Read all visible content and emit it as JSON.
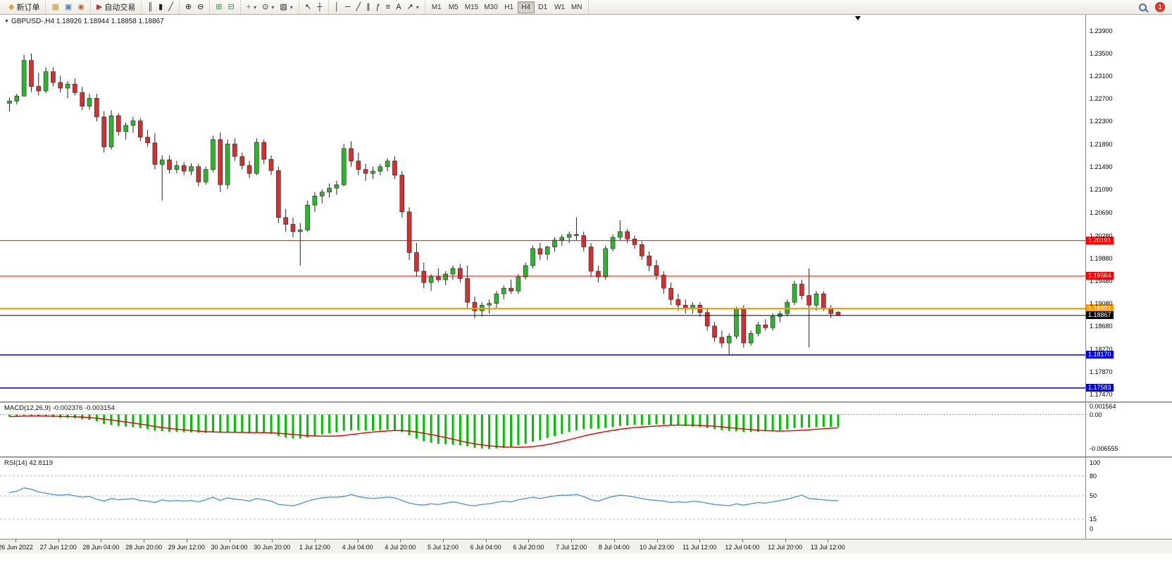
{
  "toolbar": {
    "notification_count": "1",
    "active_timeframe": "H4",
    "timeframes": [
      "M1",
      "M5",
      "M15",
      "M30",
      "H1",
      "H4",
      "D1",
      "W1",
      "MN"
    ],
    "groups": [
      {
        "name": "trade",
        "items": [
          {
            "name": "new-order-button",
            "label": "新订单",
            "glyph": "◆",
            "gc": "#d9a43b"
          }
        ]
      },
      {
        "name": "windows",
        "items": [
          {
            "name": "charts-grid-icon",
            "glyph": "▦",
            "gc": "#c49a3c"
          },
          {
            "name": "profiles-icon",
            "glyph": "▣",
            "gc": "#5b7fbf"
          },
          {
            "name": "market-watch-icon",
            "glyph": "◉",
            "gc": "#c2622f"
          }
        ]
      },
      {
        "name": "autotrade",
        "items": [
          {
            "name": "auto-trading-button",
            "label": "自动交易",
            "glyph": "▶",
            "gc": "#c03a2b"
          }
        ]
      },
      {
        "name": "chart-type",
        "items": [
          {
            "name": "bar-chart-icon",
            "glyph": "║"
          },
          {
            "name": "candlestick-chart-icon",
            "glyph": "▮"
          },
          {
            "name": "line-chart-icon",
            "glyph": "╱"
          }
        ]
      },
      {
        "name": "zoom",
        "items": [
          {
            "name": "zoom-in-icon",
            "glyph": "⊕"
          },
          {
            "name": "zoom-out-icon",
            "glyph": "⊖"
          }
        ]
      },
      {
        "name": "arrange",
        "items": [
          {
            "name": "tile-windows-icon",
            "glyph": "⊞",
            "gc": "#3a8a3a"
          },
          {
            "name": "cascade-windows-icon",
            "glyph": "⊟",
            "gc": "#3a8a3a"
          }
        ]
      },
      {
        "name": "chart-tools",
        "items": [
          {
            "name": "indicators-icon",
            "glyph": "+",
            "gc": "#1e9e1e",
            "dropdown": true
          },
          {
            "name": "periods-icon",
            "glyph": "⊙",
            "dropdown": true
          },
          {
            "name": "templates-icon",
            "glyph": "▨",
            "dropdown": true
          }
        ]
      },
      {
        "name": "cursor-tools",
        "items": [
          {
            "name": "cursor-icon",
            "glyph": "↖"
          },
          {
            "name": "crosshair-icon",
            "glyph": "┼"
          }
        ]
      },
      {
        "name": "draw-tools",
        "items": [
          {
            "name": "vertical-line-icon",
            "glyph": "│"
          },
          {
            "name": "horizontal-line-icon",
            "glyph": "─"
          },
          {
            "name": "trendline-icon",
            "glyph": "╱"
          },
          {
            "name": "channel-icon",
            "glyph": "∥"
          },
          {
            "name": "fibonacci-icon",
            "glyph": "ƒ"
          },
          {
            "name": "shapes-icon",
            "glyph": "≡"
          },
          {
            "name": "text-icon",
            "glyph": "A"
          },
          {
            "name": "arrows-icon",
            "glyph": "↗",
            "dropdown": true
          }
        ]
      },
      {
        "name": "timeframes",
        "items": []
      }
    ]
  },
  "chart": {
    "symbol_info": "GBPUSD-,H4  1.18926 1.18944 1.18858 1.18867",
    "price_axis": [
      "1.23900",
      "1.23500",
      "1.23100",
      "1.22700",
      "1.22300",
      "1.21890",
      "1.21490",
      "1.21090",
      "1.20690",
      "1.20280",
      "1.19880",
      "1.19480",
      "1.19080",
      "1.18680",
      "1.18270",
      "1.17870",
      "1.17470"
    ],
    "time_axis": [
      "26 Jun 2022",
      "27 Jun 12:00",
      "28 Jun 04:00",
      "28 Jun 20:00",
      "29 Jun 12:00",
      "30 Jun 04:00",
      "30 Jun 20:00",
      "1 Jul 12:00",
      "4 Jul 04:00",
      "4 Jul 20:00",
      "5 Jul 12:00",
      "6 Jul 04:00",
      "6 Jul 20:00",
      "7 Jul 12:00",
      "8 Jul 04:00",
      "10 Jul 23:00",
      "11 Jul 12:00",
      "12 Jul 04:00",
      "12 Jul 20:00",
      "13 Jul 12:00"
    ]
  },
  "macd_panel": {
    "label": "MACD(12,26,9) -0.002376 -0.003154",
    "axis": [
      "0.001564",
      "0.00",
      "-0.006555"
    ]
  },
  "rsi_panel": {
    "label": "RSI(14) 42.8119",
    "axis": [
      "100",
      "80",
      "50",
      "15",
      "0"
    ]
  },
  "colors": {
    "bull": "#2eb52e",
    "bear": "#d43030",
    "wick": "#222222",
    "macd_hist": "#00c000",
    "macd_signal": "#dd0000",
    "rsi_line": "#4a90d9"
  },
  "chart_data": {
    "type": "candlestick",
    "symbol": "GBPUSD-",
    "timeframe": "H4",
    "ohlc_current": {
      "open": "1.18926",
      "high": "1.18944",
      "low": "1.18858",
      "close": "1.18867"
    },
    "price_range": {
      "top": 1.239,
      "bottom": 1.1747
    },
    "levels": [
      {
        "price": 1.20191,
        "label": "1.20191",
        "color": "#ff0000",
        "width": 1
      },
      {
        "price": 1.19564,
        "label": "1.19564",
        "color": "#ff0000",
        "width": 1
      },
      {
        "price": 1.18991,
        "label": "1.18991",
        "color": "#ff9c00",
        "width": 2
      },
      {
        "price": 1.18867,
        "label": "1.18867",
        "color": "#000000",
        "width": 1
      },
      {
        "price": 1.1817,
        "label": "1.18170",
        "color": "#0000e6",
        "width": 1.5
      },
      {
        "price": 1.17583,
        "label": "1.17583",
        "color": "#0000e6",
        "width": 1.5
      }
    ],
    "candles": [
      [
        1.2262,
        1.2272,
        1.2248,
        1.2266
      ],
      [
        1.2266,
        1.2279,
        1.226,
        1.2275
      ],
      [
        1.2275,
        1.2348,
        1.2274,
        1.2338
      ],
      [
        1.2338,
        1.235,
        1.2282,
        1.2292
      ],
      [
        1.2292,
        1.2316,
        1.2276,
        1.2284
      ],
      [
        1.2284,
        1.2326,
        1.228,
        1.2318
      ],
      [
        1.2318,
        1.2326,
        1.2292,
        1.2299
      ],
      [
        1.2299,
        1.2311,
        1.2281,
        1.2289
      ],
      [
        1.2289,
        1.2301,
        1.2271,
        1.2296
      ],
      [
        1.2296,
        1.2306,
        1.2276,
        1.2281
      ],
      [
        1.2281,
        1.2291,
        1.225,
        1.2257
      ],
      [
        1.2257,
        1.2279,
        1.2251,
        1.2271
      ],
      [
        1.2271,
        1.2279,
        1.223,
        1.2238
      ],
      [
        1.2238,
        1.2248,
        1.2175,
        1.2185
      ],
      [
        1.2185,
        1.225,
        1.218,
        1.224
      ],
      [
        1.224,
        1.2245,
        1.2205,
        1.2212
      ],
      [
        1.2212,
        1.2228,
        1.2198,
        1.2223
      ],
      [
        1.2223,
        1.2238,
        1.221,
        1.2231
      ],
      [
        1.2231,
        1.2236,
        1.2195,
        1.2202
      ],
      [
        1.2202,
        1.2215,
        1.2185,
        1.2192
      ],
      [
        1.2192,
        1.2209,
        1.2145,
        1.2154
      ],
      [
        1.2154,
        1.217,
        1.209,
        1.2162
      ],
      [
        1.2162,
        1.217,
        1.2138,
        1.2145
      ],
      [
        1.2145,
        1.216,
        1.2138,
        1.2152
      ],
      [
        1.2152,
        1.2158,
        1.2135,
        1.2142
      ],
      [
        1.2142,
        1.2156,
        1.2135,
        1.215
      ],
      [
        1.215,
        1.2155,
        1.2115,
        1.2123
      ],
      [
        1.2123,
        1.215,
        1.2118,
        1.2145
      ],
      [
        1.2145,
        1.2205,
        1.214,
        1.2198
      ],
      [
        1.2198,
        1.221,
        1.2105,
        1.2118
      ],
      [
        1.2118,
        1.2198,
        1.211,
        1.219
      ],
      [
        1.219,
        1.22,
        1.216,
        1.2168
      ],
      [
        1.2168,
        1.2175,
        1.2145,
        1.2152
      ],
      [
        1.2152,
        1.216,
        1.213,
        1.2138
      ],
      [
        1.2138,
        1.22,
        1.2135,
        1.2193
      ],
      [
        1.2193,
        1.2198,
        1.2155,
        1.2163
      ],
      [
        1.2163,
        1.217,
        1.2135,
        1.2143
      ],
      [
        1.2143,
        1.215,
        1.205,
        1.206
      ],
      [
        1.206,
        1.2075,
        1.2035,
        1.2048
      ],
      [
        1.2048,
        1.206,
        1.2025,
        1.2035
      ],
      [
        1.2035,
        1.205,
        1.1975,
        1.2038
      ],
      [
        1.2038,
        1.209,
        1.2035,
        1.2082
      ],
      [
        1.2082,
        1.2105,
        1.207,
        1.2098
      ],
      [
        1.2098,
        1.211,
        1.2085,
        1.2105
      ],
      [
        1.2105,
        1.212,
        1.2095,
        1.2112
      ],
      [
        1.2112,
        1.2125,
        1.21,
        1.2118
      ],
      [
        1.2118,
        1.219,
        1.2115,
        1.2182
      ],
      [
        1.2182,
        1.2195,
        1.215,
        1.216
      ],
      [
        1.216,
        1.2175,
        1.2135,
        1.2145
      ],
      [
        1.2145,
        1.2155,
        1.2125,
        1.2138
      ],
      [
        1.2138,
        1.215,
        1.2128,
        1.2142
      ],
      [
        1.2142,
        1.2155,
        1.2135,
        1.215
      ],
      [
        1.215,
        1.2165,
        1.2142,
        1.216
      ],
      [
        1.216,
        1.2168,
        1.2128,
        1.2135
      ],
      [
        1.2135,
        1.2142,
        1.206,
        1.207
      ],
      [
        1.207,
        1.2078,
        1.1985,
        1.1998
      ],
      [
        1.1998,
        1.2015,
        1.1955,
        1.1965
      ],
      [
        1.1965,
        1.198,
        1.1935,
        1.1945
      ],
      [
        1.1945,
        1.196,
        1.193,
        1.1955
      ],
      [
        1.1955,
        1.197,
        1.1945,
        1.195
      ],
      [
        1.195,
        1.1965,
        1.194,
        1.196
      ],
      [
        1.196,
        1.1975,
        1.195,
        1.197
      ],
      [
        1.197,
        1.1978,
        1.1945,
        1.1952
      ],
      [
        1.1952,
        1.1975,
        1.19,
        1.191
      ],
      [
        1.191,
        1.192,
        1.1882,
        1.1895
      ],
      [
        1.1895,
        1.191,
        1.1885,
        1.1905
      ],
      [
        1.1905,
        1.1915,
        1.189,
        1.1908
      ],
      [
        1.1908,
        1.193,
        1.19,
        1.1925
      ],
      [
        1.1925,
        1.194,
        1.1915,
        1.1935
      ],
      [
        1.1935,
        1.195,
        1.1925,
        1.193
      ],
      [
        1.193,
        1.196,
        1.1925,
        1.1955
      ],
      [
        1.1955,
        1.198,
        1.195,
        1.1975
      ],
      [
        1.1975,
        1.201,
        1.197,
        1.2005
      ],
      [
        1.2005,
        1.2015,
        1.1985,
        1.1995
      ],
      [
        1.1995,
        1.201,
        1.1985,
        1.2008
      ],
      [
        1.2008,
        1.2025,
        1.2,
        1.202
      ],
      [
        1.202,
        1.203,
        1.201,
        1.2025
      ],
      [
        1.2025,
        1.2035,
        1.2015,
        1.203
      ],
      [
        1.203,
        1.206,
        1.202,
        1.2028
      ],
      [
        1.2028,
        1.2035,
        1.2,
        1.2008
      ],
      [
        1.2008,
        1.2015,
        1.1955,
        1.1965
      ],
      [
        1.1965,
        1.1975,
        1.1945,
        1.1955
      ],
      [
        1.1955,
        1.201,
        1.195,
        1.2005
      ],
      [
        1.2005,
        1.203,
        1.2,
        1.2025
      ],
      [
        1.2025,
        1.2055,
        1.202,
        1.2035
      ],
      [
        1.2035,
        1.204,
        1.2015,
        1.2022
      ],
      [
        1.2022,
        1.2028,
        1.2005,
        1.2012
      ],
      [
        1.2012,
        1.2018,
        1.1985,
        1.1992
      ],
      [
        1.1992,
        1.2,
        1.1965,
        1.1975
      ],
      [
        1.1975,
        1.1985,
        1.195,
        1.1958
      ],
      [
        1.1958,
        1.1965,
        1.1925,
        1.1935
      ],
      [
        1.1935,
        1.1945,
        1.1905,
        1.1915
      ],
      [
        1.1915,
        1.1925,
        1.1895,
        1.1905
      ],
      [
        1.1905,
        1.1915,
        1.189,
        1.1898
      ],
      [
        1.1898,
        1.191,
        1.189,
        1.1905
      ],
      [
        1.1905,
        1.191,
        1.1885,
        1.1892
      ],
      [
        1.1892,
        1.1898,
        1.186,
        1.1868
      ],
      [
        1.1868,
        1.1875,
        1.184,
        1.1848
      ],
      [
        1.1848,
        1.186,
        1.183,
        1.1838
      ],
      [
        1.1838,
        1.1855,
        1.1818,
        1.185
      ],
      [
        1.185,
        1.1902,
        1.1845,
        1.1898
      ],
      [
        1.1898,
        1.1905,
        1.183,
        1.1838
      ],
      [
        1.1838,
        1.186,
        1.1833,
        1.1855
      ],
      [
        1.1855,
        1.1875,
        1.185,
        1.187
      ],
      [
        1.187,
        1.188,
        1.186,
        1.1865
      ],
      [
        1.1865,
        1.189,
        1.186,
        1.1885
      ],
      [
        1.1885,
        1.1895,
        1.1875,
        1.189
      ],
      [
        1.189,
        1.1915,
        1.1885,
        1.191
      ],
      [
        1.191,
        1.1948,
        1.1905,
        1.1942
      ],
      [
        1.1942,
        1.195,
        1.1915,
        1.1922
      ],
      [
        1.1922,
        1.197,
        1.183,
        1.1905
      ],
      [
        1.1905,
        1.193,
        1.1895,
        1.1925
      ],
      [
        1.1925,
        1.193,
        1.1895,
        1.19
      ],
      [
        1.19,
        1.1905,
        1.1882,
        1.189
      ],
      [
        1.18926,
        1.18944,
        1.18858,
        1.18867
      ]
    ],
    "macd": {
      "scale": {
        "top": 0.001564,
        "bottom": -0.006555
      },
      "histogram": [
        -0.0004,
        -0.0003,
        -0.0002,
        -0.0001,
        -0.0003,
        -0.0004,
        -0.0005,
        -0.0006,
        -0.0006,
        -0.0007,
        -0.0009,
        -0.001,
        -0.0013,
        -0.0018,
        -0.002,
        -0.0022,
        -0.0023,
        -0.0024,
        -0.0026,
        -0.0028,
        -0.0031,
        -0.0032,
        -0.0033,
        -0.0033,
        -0.0034,
        -0.0034,
        -0.0035,
        -0.0035,
        -0.0033,
        -0.0035,
        -0.0034,
        -0.0034,
        -0.0035,
        -0.0036,
        -0.0035,
        -0.0036,
        -0.0037,
        -0.0041,
        -0.0044,
        -0.0046,
        -0.0046,
        -0.0044,
        -0.0041,
        -0.0038,
        -0.0036,
        -0.0034,
        -0.0031,
        -0.003,
        -0.003,
        -0.0031,
        -0.0031,
        -0.003,
        -0.0029,
        -0.003,
        -0.0034,
        -0.004,
        -0.0046,
        -0.0051,
        -0.0054,
        -0.0056,
        -0.0057,
        -0.0058,
        -0.0059,
        -0.0061,
        -0.0064,
        -0.0065,
        -0.0066,
        -0.0065,
        -0.0064,
        -0.0062,
        -0.0059,
        -0.0056,
        -0.0052,
        -0.0049,
        -0.0045,
        -0.0041,
        -0.0037,
        -0.0033,
        -0.003,
        -0.0028,
        -0.0027,
        -0.0027,
        -0.0026,
        -0.0024,
        -0.0022,
        -0.0021,
        -0.002,
        -0.002,
        -0.002,
        -0.0019,
        -0.0019,
        -0.002,
        -0.0021,
        -0.0022,
        -0.0023,
        -0.0024,
        -0.0026,
        -0.0028,
        -0.003,
        -0.0031,
        -0.0032,
        -0.0033,
        -0.0033,
        -0.0033,
        -0.0032,
        -0.0031,
        -0.003,
        -0.0028,
        -0.0026,
        -0.0025,
        -0.0025,
        -0.0024,
        -0.0024,
        -0.0024,
        -0.002376
      ]
    },
    "rsi": {
      "levels": [
        80,
        50,
        15
      ],
      "values": [
        55,
        57,
        62,
        60,
        56,
        54,
        52,
        51,
        52,
        50,
        48,
        49,
        45,
        42,
        46,
        44,
        45,
        46,
        43,
        42,
        40,
        44,
        42,
        43,
        42,
        43,
        41,
        44,
        48,
        43,
        47,
        45,
        44,
        42,
        46,
        44,
        42,
        37,
        36,
        35,
        38,
        42,
        45,
        47,
        48,
        48,
        49,
        52,
        49,
        47,
        46,
        47,
        48,
        47,
        43,
        39,
        37,
        36,
        38,
        37,
        39,
        41,
        39,
        36,
        35,
        37,
        38,
        40,
        42,
        41,
        44,
        46,
        48,
        46,
        48,
        50,
        51,
        51,
        52,
        49,
        44,
        42,
        46,
        49,
        51,
        50,
        48,
        46,
        44,
        43,
        42,
        40,
        41,
        40,
        42,
        41,
        39,
        37,
        36,
        35,
        38,
        36,
        38,
        40,
        39,
        41,
        43,
        45,
        48,
        51,
        46,
        45,
        44,
        43,
        42.8
      ]
    }
  }
}
